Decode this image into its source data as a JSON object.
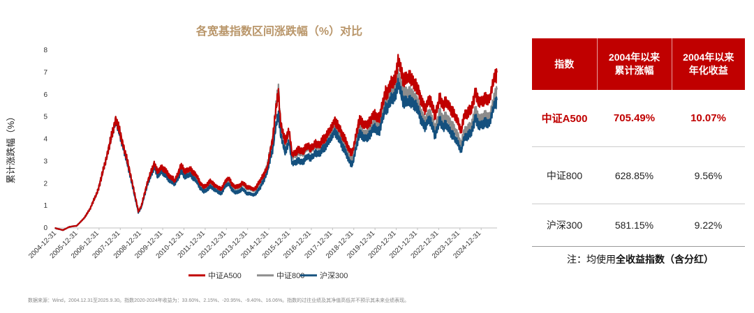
{
  "chart_data": {
    "type": "line",
    "title": "各宽基指数区间涨跌幅（%）对比",
    "ylabel": "累计涨跌幅（%）",
    "xlabel": "",
    "ylim": [
      0,
      8
    ],
    "yticks": [
      0,
      1,
      2,
      3,
      4,
      5,
      6,
      7,
      8
    ],
    "x_range": [
      2004.9,
      2025.75
    ],
    "x_tick_labels": [
      "2004-12-31",
      "2005-12-31",
      "2006-12-31",
      "2007-12-31",
      "2008-12-31",
      "2009-12-31",
      "2010-12-31",
      "2011-12-31",
      "2012-12-31",
      "2013-12-31",
      "2014-12-31",
      "2015-12-31",
      "2016-12-31",
      "2017-12-31",
      "2018-12-31",
      "2019-12-31",
      "2020-12-31",
      "2021-12-31",
      "2022-12-31",
      "2023-12-31",
      "2024-12-31"
    ],
    "x_tick_years": [
      2005,
      2006,
      2007,
      2008,
      2009,
      2010,
      2011,
      2012,
      2013,
      2014,
      2015,
      2016,
      2017,
      2018,
      2019,
      2020,
      2021,
      2022,
      2023,
      2024,
      2025
    ],
    "legend_position": "bottom",
    "series": [
      {
        "name": "中证A500",
        "color": "#c00000",
        "points": [
          [
            2004.92,
            0
          ],
          [
            2005.3,
            -0.1
          ],
          [
            2005.6,
            0.05
          ],
          [
            2005.95,
            0.1
          ],
          [
            2006.3,
            0.45
          ],
          [
            2006.6,
            0.9
          ],
          [
            2006.95,
            1.7
          ],
          [
            2007.3,
            3.0
          ],
          [
            2007.6,
            4.1
          ],
          [
            2007.8,
            4.95
          ],
          [
            2008.0,
            4.3
          ],
          [
            2008.3,
            3.1
          ],
          [
            2008.6,
            1.9
          ],
          [
            2008.85,
            0.75
          ],
          [
            2009.0,
            1.0
          ],
          [
            2009.3,
            2.1
          ],
          [
            2009.6,
            2.95
          ],
          [
            2009.75,
            2.5
          ],
          [
            2009.95,
            2.8
          ],
          [
            2010.3,
            2.4
          ],
          [
            2010.55,
            2.1
          ],
          [
            2010.85,
            2.8
          ],
          [
            2011.0,
            2.6
          ],
          [
            2011.3,
            2.65
          ],
          [
            2011.6,
            2.3
          ],
          [
            2011.95,
            1.8
          ],
          [
            2012.2,
            2.1
          ],
          [
            2012.45,
            1.95
          ],
          [
            2012.75,
            1.7
          ],
          [
            2012.95,
            2.1
          ],
          [
            2013.1,
            2.2
          ],
          [
            2013.45,
            1.8
          ],
          [
            2013.7,
            2.0
          ],
          [
            2013.95,
            1.9
          ],
          [
            2014.3,
            1.75
          ],
          [
            2014.6,
            2.1
          ],
          [
            2014.95,
            2.8
          ],
          [
            2015.2,
            4.2
          ],
          [
            2015.45,
            6.2
          ],
          [
            2015.55,
            4.8
          ],
          [
            2015.75,
            3.9
          ],
          [
            2015.95,
            4.3
          ],
          [
            2016.1,
            3.3
          ],
          [
            2016.5,
            3.5
          ],
          [
            2016.95,
            3.65
          ],
          [
            2017.4,
            3.8
          ],
          [
            2017.95,
            4.55
          ],
          [
            2018.1,
            4.9
          ],
          [
            2018.45,
            4.2
          ],
          [
            2018.8,
            3.5
          ],
          [
            2018.95,
            3.4
          ],
          [
            2019.25,
            4.8
          ],
          [
            2019.6,
            4.6
          ],
          [
            2019.95,
            5.1
          ],
          [
            2020.2,
            4.9
          ],
          [
            2020.5,
            6.1
          ],
          [
            2020.75,
            6.4
          ],
          [
            2021.0,
            6.9
          ],
          [
            2021.1,
            7.45
          ],
          [
            2021.3,
            6.8
          ],
          [
            2021.6,
            6.8
          ],
          [
            2021.95,
            6.4
          ],
          [
            2022.2,
            5.7
          ],
          [
            2022.35,
            5.3
          ],
          [
            2022.55,
            5.9
          ],
          [
            2022.8,
            5.1
          ],
          [
            2023.05,
            5.75
          ],
          [
            2023.3,
            5.6
          ],
          [
            2023.6,
            5.3
          ],
          [
            2023.9,
            4.9
          ],
          [
            2024.05,
            4.4
          ],
          [
            2024.2,
            5.0
          ],
          [
            2024.5,
            5.3
          ],
          [
            2024.75,
            6.1
          ],
          [
            2024.9,
            5.6
          ],
          [
            2025.1,
            5.7
          ],
          [
            2025.4,
            5.9
          ],
          [
            2025.55,
            6.5
          ],
          [
            2025.75,
            7.05
          ]
        ]
      },
      {
        "name": "中证800",
        "color": "#8c8c8c",
        "points": [
          [
            2004.92,
            0
          ],
          [
            2005.3,
            -0.1
          ],
          [
            2005.6,
            0.05
          ],
          [
            2005.95,
            0.1
          ],
          [
            2006.3,
            0.45
          ],
          [
            2006.6,
            0.9
          ],
          [
            2006.95,
            1.7
          ],
          [
            2007.3,
            3.0
          ],
          [
            2007.6,
            4.1
          ],
          [
            2007.8,
            4.95
          ],
          [
            2008.0,
            4.3
          ],
          [
            2008.3,
            3.1
          ],
          [
            2008.6,
            1.9
          ],
          [
            2008.85,
            0.75
          ],
          [
            2009.0,
            1.0
          ],
          [
            2009.3,
            2.1
          ],
          [
            2009.6,
            2.95
          ],
          [
            2009.75,
            2.45
          ],
          [
            2009.95,
            2.75
          ],
          [
            2010.3,
            2.35
          ],
          [
            2010.55,
            2.05
          ],
          [
            2010.85,
            2.7
          ],
          [
            2011.0,
            2.5
          ],
          [
            2011.3,
            2.55
          ],
          [
            2011.6,
            2.2
          ],
          [
            2011.95,
            1.75
          ],
          [
            2012.2,
            2.0
          ],
          [
            2012.45,
            1.9
          ],
          [
            2012.75,
            1.65
          ],
          [
            2012.95,
            2.05
          ],
          [
            2013.1,
            2.1
          ],
          [
            2013.45,
            1.75
          ],
          [
            2013.7,
            1.95
          ],
          [
            2013.95,
            1.85
          ],
          [
            2014.3,
            1.7
          ],
          [
            2014.6,
            2.0
          ],
          [
            2014.95,
            2.9
          ],
          [
            2015.2,
            4.2
          ],
          [
            2015.45,
            6.4
          ],
          [
            2015.55,
            4.8
          ],
          [
            2015.75,
            3.8
          ],
          [
            2015.95,
            4.2
          ],
          [
            2016.1,
            3.2
          ],
          [
            2016.5,
            3.4
          ],
          [
            2016.95,
            3.6
          ],
          [
            2017.4,
            3.7
          ],
          [
            2017.95,
            4.35
          ],
          [
            2018.1,
            4.6
          ],
          [
            2018.45,
            3.9
          ],
          [
            2018.8,
            3.2
          ],
          [
            2018.95,
            3.1
          ],
          [
            2019.25,
            4.4
          ],
          [
            2019.6,
            4.2
          ],
          [
            2019.95,
            4.7
          ],
          [
            2020.2,
            4.6
          ],
          [
            2020.5,
            5.7
          ],
          [
            2020.75,
            6.0
          ],
          [
            2021.0,
            6.4
          ],
          [
            2021.1,
            6.8
          ],
          [
            2021.3,
            6.2
          ],
          [
            2021.6,
            6.1
          ],
          [
            2021.95,
            5.8
          ],
          [
            2022.2,
            5.1
          ],
          [
            2022.35,
            4.75
          ],
          [
            2022.55,
            5.3
          ],
          [
            2022.8,
            4.5
          ],
          [
            2023.05,
            5.1
          ],
          [
            2023.3,
            4.95
          ],
          [
            2023.6,
            4.65
          ],
          [
            2023.9,
            4.25
          ],
          [
            2024.05,
            3.8
          ],
          [
            2024.2,
            4.3
          ],
          [
            2024.5,
            4.55
          ],
          [
            2024.75,
            5.3
          ],
          [
            2024.9,
            4.85
          ],
          [
            2025.1,
            4.95
          ],
          [
            2025.4,
            5.1
          ],
          [
            2025.55,
            5.6
          ],
          [
            2025.75,
            6.29
          ]
        ]
      },
      {
        "name": "沪深300",
        "color": "#14507e",
        "points": [
          [
            2004.92,
            0
          ],
          [
            2005.3,
            -0.1
          ],
          [
            2005.6,
            0.05
          ],
          [
            2005.95,
            0.1
          ],
          [
            2006.3,
            0.45
          ],
          [
            2006.6,
            0.9
          ],
          [
            2006.95,
            1.7
          ],
          [
            2007.3,
            3.0
          ],
          [
            2007.6,
            4.1
          ],
          [
            2007.8,
            4.9
          ],
          [
            2008.0,
            4.2
          ],
          [
            2008.3,
            3.0
          ],
          [
            2008.6,
            1.8
          ],
          [
            2008.85,
            0.7
          ],
          [
            2009.0,
            0.95
          ],
          [
            2009.3,
            2.0
          ],
          [
            2009.6,
            2.8
          ],
          [
            2009.75,
            2.3
          ],
          [
            2009.95,
            2.6
          ],
          [
            2010.3,
            2.2
          ],
          [
            2010.55,
            1.95
          ],
          [
            2010.85,
            2.55
          ],
          [
            2011.0,
            2.35
          ],
          [
            2011.3,
            2.4
          ],
          [
            2011.6,
            2.05
          ],
          [
            2011.95,
            1.6
          ],
          [
            2012.2,
            1.85
          ],
          [
            2012.45,
            1.75
          ],
          [
            2012.75,
            1.5
          ],
          [
            2012.95,
            1.9
          ],
          [
            2013.1,
            1.95
          ],
          [
            2013.45,
            1.55
          ],
          [
            2013.7,
            1.75
          ],
          [
            2013.95,
            1.6
          ],
          [
            2014.3,
            1.5
          ],
          [
            2014.6,
            1.8
          ],
          [
            2014.95,
            2.6
          ],
          [
            2015.2,
            3.7
          ],
          [
            2015.45,
            5.2
          ],
          [
            2015.55,
            4.3
          ],
          [
            2015.75,
            3.4
          ],
          [
            2015.95,
            3.8
          ],
          [
            2016.1,
            2.9
          ],
          [
            2016.5,
            3.0
          ],
          [
            2016.95,
            3.2
          ],
          [
            2017.4,
            3.4
          ],
          [
            2017.95,
            4.1
          ],
          [
            2018.1,
            4.4
          ],
          [
            2018.45,
            3.7
          ],
          [
            2018.8,
            3.0
          ],
          [
            2018.95,
            2.85
          ],
          [
            2019.25,
            4.2
          ],
          [
            2019.6,
            4.0
          ],
          [
            2019.95,
            4.5
          ],
          [
            2020.2,
            4.3
          ],
          [
            2020.5,
            5.4
          ],
          [
            2020.75,
            5.7
          ],
          [
            2021.0,
            6.1
          ],
          [
            2021.1,
            6.4
          ],
          [
            2021.3,
            5.8
          ],
          [
            2021.6,
            5.7
          ],
          [
            2021.95,
            5.5
          ],
          [
            2022.2,
            4.8
          ],
          [
            2022.35,
            4.5
          ],
          [
            2022.55,
            5.0
          ],
          [
            2022.8,
            4.2
          ],
          [
            2023.05,
            4.75
          ],
          [
            2023.3,
            4.6
          ],
          [
            2023.6,
            4.25
          ],
          [
            2023.9,
            3.9
          ],
          [
            2024.05,
            3.5
          ],
          [
            2024.2,
            4.0
          ],
          [
            2024.5,
            4.25
          ],
          [
            2024.75,
            4.95
          ],
          [
            2024.9,
            4.55
          ],
          [
            2025.1,
            4.65
          ],
          [
            2025.4,
            4.8
          ],
          [
            2025.55,
            5.3
          ],
          [
            2025.75,
            5.81
          ]
        ]
      }
    ]
  },
  "source_note": "数据来源：Wind，2004.12.31至2025.9.30。指数2020-2024年收益为：33.60%、2.15%、-20.95%、-9.40%、16.06%。指数的过往业绩及其净值高低并不预示其未来业绩表现。",
  "table": {
    "headers": [
      "指数",
      "2004年以来\n累计涨幅",
      "2004年以来\n年化收益"
    ],
    "rows": [
      {
        "name": "中证A500",
        "cumulative": "705.49%",
        "annualized": "10.07%"
      },
      {
        "name": "中证800",
        "cumulative": "628.85%",
        "annualized": "9.56%"
      },
      {
        "name": "沪深300",
        "cumulative": "581.15%",
        "annualized": "9.22%"
      }
    ]
  },
  "note": {
    "prefix": "注：均使用",
    "bold": "全收益指数（含分红）"
  }
}
